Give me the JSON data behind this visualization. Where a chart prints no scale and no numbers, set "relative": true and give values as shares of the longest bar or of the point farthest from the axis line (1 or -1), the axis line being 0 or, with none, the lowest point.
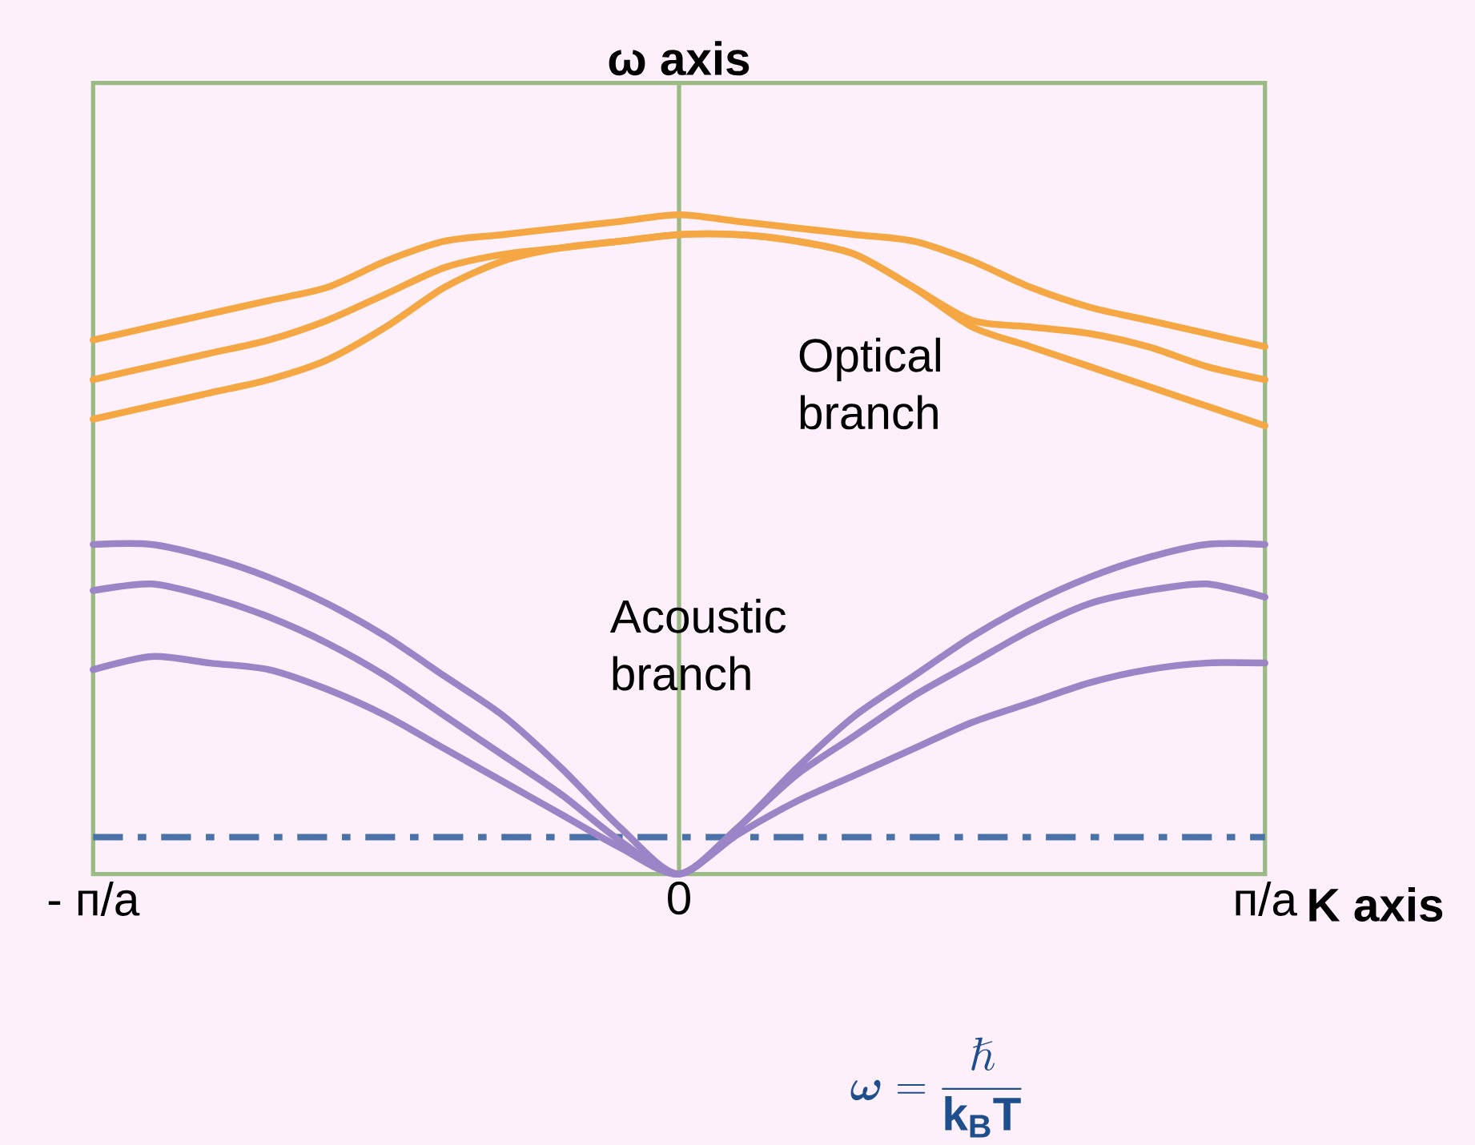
{
  "chart_data": {
    "type": "line",
    "relative": true,
    "xlabel": "K axis",
    "ylabel": "ω axis",
    "categories": [
      "- п/а",
      null,
      null,
      null,
      null,
      null,
      null,
      null,
      null,
      null,
      "0",
      null,
      null,
      null,
      null,
      null,
      null,
      null,
      null,
      null,
      "п/а"
    ],
    "marker": "none",
    "line_style": "solid",
    "series": [
      {
        "color": "#f4a742",
        "values": [
          0.81,
          0.83,
          0.85,
          0.87,
          0.89,
          0.93,
          0.96,
          0.97,
          0.98,
          0.99,
          1.0,
          0.99,
          0.98,
          0.97,
          0.96,
          0.93,
          0.89,
          0.86,
          0.84,
          0.82,
          0.8
        ]
      },
      {
        "color": "#f4a742",
        "values": [
          0.75,
          0.77,
          0.79,
          0.81,
          0.84,
          0.88,
          0.92,
          0.94,
          0.95,
          0.96,
          0.97,
          0.97,
          0.96,
          0.94,
          0.89,
          0.84,
          0.83,
          0.82,
          0.8,
          0.77,
          0.75
        ]
      },
      {
        "color": "#f4a742",
        "values": [
          0.69,
          0.71,
          0.73,
          0.75,
          0.78,
          0.83,
          0.89,
          0.93,
          0.95,
          0.96,
          0.97,
          0.97,
          0.96,
          0.94,
          0.89,
          0.83,
          0.8,
          0.77,
          0.74,
          0.71,
          0.68
        ]
      },
      {
        "color": "#9b85c6",
        "values": [
          0.5,
          0.5,
          0.48,
          0.45,
          0.41,
          0.36,
          0.3,
          0.24,
          0.16,
          0.07,
          0,
          0.07,
          0.16,
          0.24,
          0.3,
          0.36,
          0.41,
          0.45,
          0.48,
          0.5,
          0.5
        ]
      },
      {
        "color": "#9b85c6",
        "values": [
          0.43,
          0.44,
          0.42,
          0.39,
          0.35,
          0.3,
          0.24,
          0.18,
          0.12,
          0.05,
          0,
          0.07,
          0.15,
          0.21,
          0.27,
          0.32,
          0.37,
          0.41,
          0.43,
          0.44,
          0.42
        ]
      },
      {
        "color": "#9b85c6",
        "values": [
          0.31,
          0.33,
          0.32,
          0.31,
          0.28,
          0.24,
          0.19,
          0.14,
          0.09,
          0.04,
          0,
          0.06,
          0.11,
          0.15,
          0.19,
          0.23,
          0.26,
          0.29,
          0.31,
          0.32,
          0.32
        ]
      }
    ],
    "ref_lines": [
      {
        "axis": "y",
        "value": 0.056,
        "color": "#4a72a8",
        "line_style": "dashdot"
      },
      {
        "axis": "x",
        "value": "0",
        "color": "#9bbb84",
        "line_style": "solid"
      }
    ],
    "annotations": [
      "Optical branch",
      "Acoustic branch",
      "\\boldsymbol{\\omega} = \\frac{\\hslash}{\\mathbf{k_B T}}"
    ]
  }
}
